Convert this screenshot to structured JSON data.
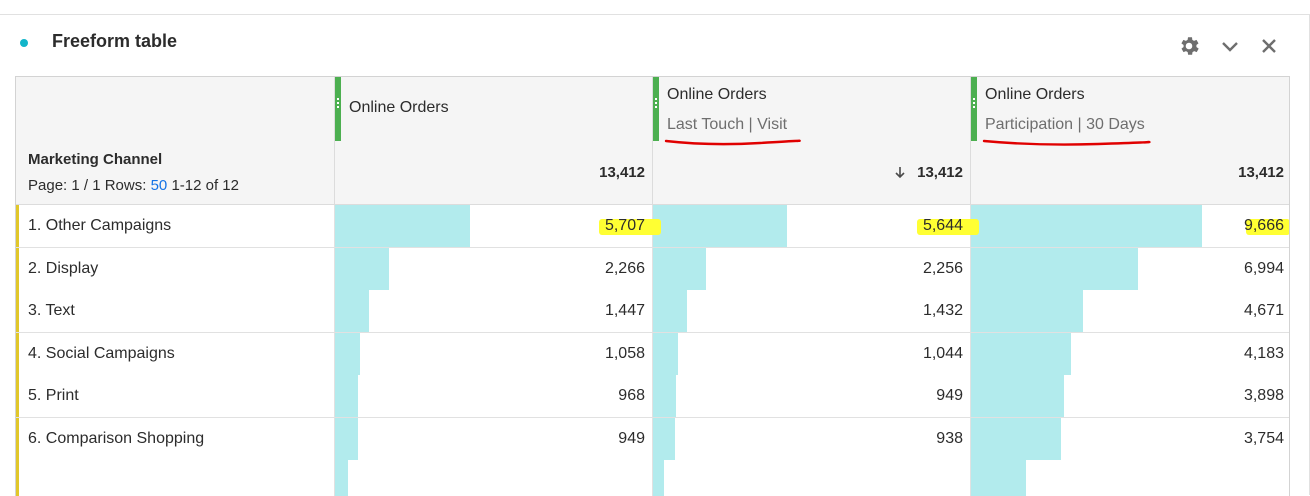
{
  "panel": {
    "title": "Freeform table",
    "status_color": "#12b5c9",
    "controls": [
      "gear-icon",
      "chevron-down-icon",
      "close-icon"
    ]
  },
  "columns": [
    {
      "metric": "Online Orders",
      "attribution": "",
      "total": "13,412",
      "sorted": false
    },
    {
      "metric": "Online Orders",
      "attribution": "Last Touch | Visit",
      "total": "13,412",
      "sorted": true
    },
    {
      "metric": "Online Orders",
      "attribution": "Participation | 30 Days",
      "total": "13,412",
      "sorted": false
    }
  ],
  "dimension": {
    "name": "Marketing Channel",
    "page_label": "Page: 1 / 1 Rows:",
    "rows_per_page": "50",
    "range": "1-12 of 12"
  },
  "rows": [
    {
      "label": "1.  Other Campaigns",
      "values": [
        "5,707",
        "5,644",
        "9,666"
      ],
      "share": [
        0.425,
        0.421,
        0.721
      ]
    },
    {
      "label": "2.  Display",
      "values": [
        "2,266",
        "2,256",
        "6,994"
      ],
      "share": [
        0.169,
        0.168,
        0.521
      ]
    },
    {
      "label": "3.  Text",
      "values": [
        "1,447",
        "1,432",
        "4,671"
      ],
      "share": [
        0.108,
        0.107,
        0.348
      ]
    },
    {
      "label": "4.  Social Campaigns",
      "values": [
        "1,058",
        "1,044",
        "4,183"
      ],
      "share": [
        0.079,
        0.078,
        0.312
      ]
    },
    {
      "label": "5.  Print",
      "values": [
        "968",
        "949",
        "3,898"
      ],
      "share": [
        0.072,
        0.071,
        0.291
      ]
    },
    {
      "label": "6.  Comparison Shopping",
      "values": [
        "949",
        "938",
        "3,754"
      ],
      "share": [
        0.071,
        0.07,
        0.28
      ]
    },
    {
      "label": "",
      "values": [
        "",
        "",
        ""
      ],
      "share": [
        0.04,
        0.035,
        0.17
      ]
    }
  ],
  "colors": {
    "bar": "#b2ebed",
    "grip": "#4caf50",
    "row_accent": "#e1c72a",
    "link": "#1473e6",
    "highlight": "#ffff33",
    "underline_annotation": "#e00000"
  }
}
